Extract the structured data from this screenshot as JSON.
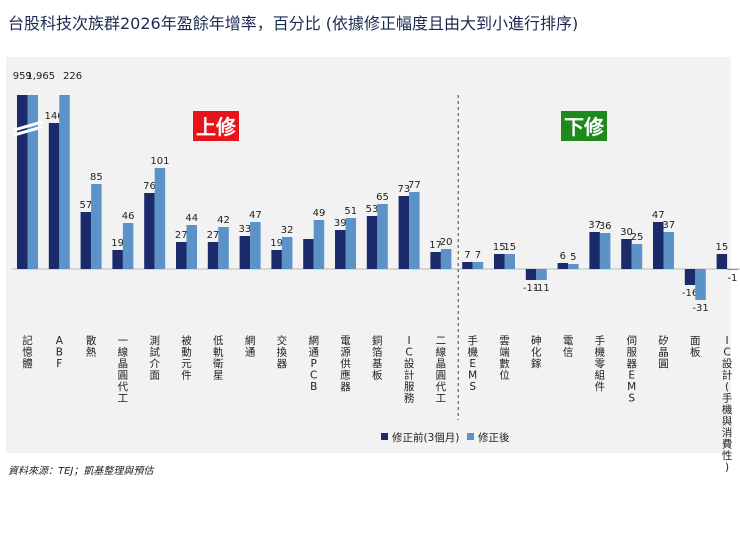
{
  "title": "台股科技次族群2026年盈餘年增率，百分比 (依據修正幅度且由大到小進行排序)",
  "source": "資料來源：TEJ；凱基整理與預估",
  "chart_data": {
    "type": "bar",
    "title": "台股科技次族群2026年盈餘年增率，百分比 (依據修正幅度且由大到小進行排序)",
    "categories": [
      "記憶體",
      "ABF",
      "散熱",
      "一線晶圓代工",
      "測試介面",
      "被動元件",
      "低軌衛星",
      "網通",
      "交換器",
      "網通PCB",
      "電源供應器",
      "銅箔基板",
      "IC設計服務",
      "二線晶圓代工",
      "手機EMS",
      "雲端數位",
      "砷化鎵",
      "電信",
      "手機零組件",
      "伺服器EMS",
      "矽晶圓",
      "面板",
      "IC設計(手機與消費性)"
    ],
    "series": [
      {
        "name": "修正前(3個月)",
        "color": "#1b2a6b",
        "values": [
          959,
          146,
          57,
          19,
          76,
          27,
          27,
          33,
          19,
          30,
          39,
          53,
          73,
          17,
          7,
          15,
          -11,
          6,
          37,
          30,
          47,
          -16,
          15
        ]
      },
      {
        "name": "修正後",
        "color": "#5b93c9",
        "values": [
          1965,
          226,
          85,
          46,
          101,
          44,
          42,
          47,
          32,
          49,
          51,
          65,
          77,
          20,
          7,
          15,
          -11,
          5,
          36,
          25,
          37,
          -31,
          -1
        ]
      }
    ],
    "value_labels": {
      "before": [
        "959",
        "146",
        "57",
        "19",
        "76",
        "27",
        "27",
        "33",
        "19",
        "",
        "39",
        "53",
        "73",
        "17",
        "7",
        "15",
        "-11",
        "6",
        "37",
        "30",
        "47",
        "-16",
        "15"
      ],
      "after": [
        "1,965",
        "226",
        "85",
        "46",
        "101",
        "44",
        "42",
        "47",
        "32",
        "49",
        "51",
        "65",
        "77",
        "20",
        "7",
        "15",
        "-11",
        "5",
        "36",
        "25",
        "37",
        "-31",
        "-1"
      ]
    },
    "axis_break": true,
    "divider_after_index": 13,
    "annotations": [
      {
        "text": "上修",
        "color": "#e8141b"
      },
      {
        "text": "下修",
        "color": "#1e8a1e"
      }
    ],
    "legend": [
      "修正前(3個月)",
      "修正後"
    ],
    "legend_position": "bottom-right",
    "xlabel": "",
    "ylabel": ""
  }
}
